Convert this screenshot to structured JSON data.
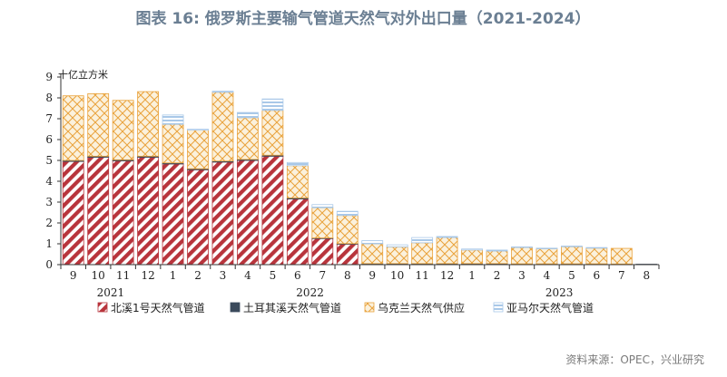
{
  "chart_data": {
    "type": "bar",
    "stacked": true,
    "title": "图表 16: 俄罗斯主要输气管道天然气对外出口量（2021-2024）",
    "ylabel": "十亿立方米",
    "ylim": [
      0,
      9
    ],
    "yticks": [
      "0",
      "1",
      "2",
      "3",
      "4",
      "5",
      "6",
      "7",
      "8",
      "9"
    ],
    "categories": [
      "9",
      "10",
      "11",
      "12",
      "1",
      "2",
      "3",
      "4",
      "5",
      "6",
      "7",
      "8",
      "9",
      "10",
      "11",
      "12",
      "1",
      "2",
      "3",
      "4",
      "5",
      "6",
      "7",
      "8"
    ],
    "year_labels": [
      {
        "label": "2021",
        "category_index": 1.5
      },
      {
        "label": "2022",
        "category_index": 9.5
      },
      {
        "label": "2023",
        "category_index": 19.5
      }
    ],
    "series": [
      {
        "name": "北溪1号天然气管道",
        "color": "#b8343c",
        "values": [
          4.95,
          5.15,
          4.98,
          5.15,
          4.83,
          4.55,
          4.92,
          5.0,
          5.2,
          3.15,
          1.25,
          0.98,
          0,
          0,
          0,
          0,
          0,
          0,
          0,
          0,
          0,
          0,
          0,
          0
        ]
      },
      {
        "name": "土耳其溪天然气管道",
        "color": "#3b4a5c",
        "values": [
          0.05,
          0.05,
          0.05,
          0.05,
          0.05,
          0.05,
          0.05,
          0.05,
          0.05,
          0.05,
          0.03,
          0.03,
          0.05,
          0.05,
          0.05,
          0.05,
          0.05,
          0.05,
          0.04,
          0.04,
          0.04,
          0.04,
          0.03,
          0.02
        ]
      },
      {
        "name": "乌克兰天然气供应",
        "color": "#e9a23b",
        "values": [
          3.1,
          3.0,
          2.85,
          3.1,
          1.85,
          1.85,
          3.3,
          2.0,
          2.15,
          1.55,
          1.45,
          1.35,
          0.95,
          0.8,
          1.0,
          1.25,
          0.65,
          0.6,
          0.78,
          0.72,
          0.82,
          0.75,
          0.75,
          0
        ]
      },
      {
        "name": "亚马尔天然气管道",
        "color": "#a9c8e8",
        "values": [
          0,
          0,
          0,
          0,
          0.45,
          0.05,
          0.05,
          0.25,
          0.55,
          0.15,
          0.15,
          0.2,
          0.15,
          0.1,
          0.25,
          0.05,
          0.05,
          0.05,
          0.03,
          0.03,
          0.03,
          0.03,
          0,
          0
        ]
      }
    ]
  },
  "source": "资料来源：OPEC，兴业研究"
}
